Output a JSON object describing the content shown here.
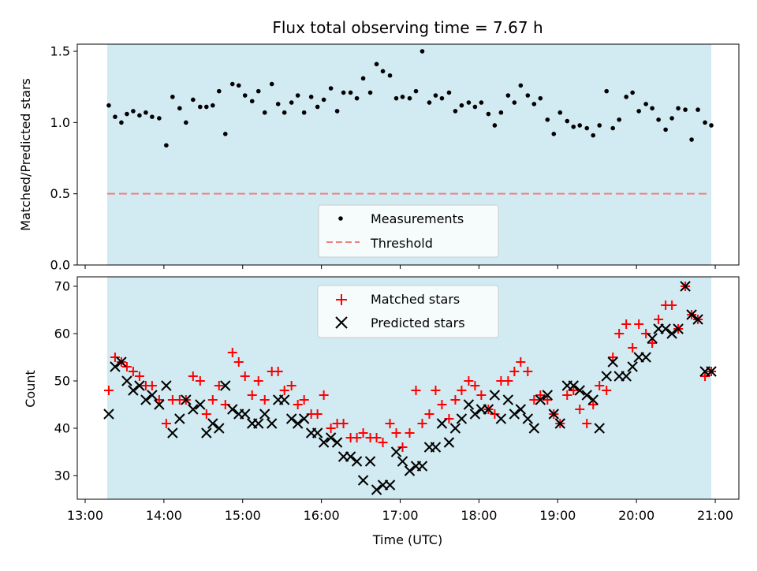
{
  "chart_data": [
    {
      "type": "scatter",
      "title": "Flux total observing time = 7.67 h",
      "xlabel": "",
      "ylabel": "Matched/Predicted stars",
      "xlim_hours": [
        12.9,
        21.3
      ],
      "ylim": [
        0.0,
        1.55
      ],
      "yticks": [
        0.0,
        0.5,
        1.0,
        1.5
      ],
      "ytick_labels": [
        "0.0",
        "0.5",
        "1.0",
        "1.5"
      ],
      "shaded_span_hours": [
        13.28,
        20.95
      ],
      "shade_color": "#add8e6",
      "threshold": {
        "name": "Threshold",
        "value": 0.5,
        "color": "#f08080",
        "x_hours": [
          13.28,
          20.9
        ]
      },
      "series": [
        {
          "name": "Measurements",
          "color": "#000000",
          "x_hours": [
            13.3,
            13.38,
            13.46,
            13.53,
            13.61,
            13.69,
            13.77,
            13.85,
            13.94,
            14.03,
            14.11,
            14.2,
            14.28,
            14.37,
            14.46,
            14.54,
            14.62,
            14.7,
            14.78,
            14.87,
            14.95,
            15.03,
            15.12,
            15.2,
            15.28,
            15.37,
            15.45,
            15.53,
            15.62,
            15.7,
            15.78,
            15.87,
            15.95,
            16.03,
            16.12,
            16.2,
            16.28,
            16.37,
            16.45,
            16.53,
            16.62,
            16.7,
            16.78,
            16.87,
            16.95,
            17.03,
            17.12,
            17.2,
            17.28,
            17.37,
            17.45,
            17.53,
            17.62,
            17.7,
            17.78,
            17.87,
            17.95,
            18.03,
            18.12,
            18.2,
            18.28,
            18.37,
            18.45,
            18.53,
            18.62,
            18.7,
            18.78,
            18.87,
            18.95,
            19.03,
            19.12,
            19.2,
            19.28,
            19.37,
            19.45,
            19.53,
            19.62,
            19.7,
            19.78,
            19.87,
            19.95,
            20.03,
            20.12,
            20.2,
            20.28,
            20.37,
            20.45,
            20.53,
            20.62,
            20.7,
            20.78,
            20.87,
            20.95
          ],
          "y": [
            1.12,
            1.04,
            1.0,
            1.06,
            1.08,
            1.05,
            1.07,
            1.04,
            1.03,
            0.84,
            1.18,
            1.1,
            1.0,
            1.16,
            1.11,
            1.11,
            1.12,
            1.22,
            0.92,
            1.27,
            1.26,
            1.19,
            1.15,
            1.22,
            1.07,
            1.27,
            1.13,
            1.07,
            1.14,
            1.19,
            1.07,
            1.18,
            1.11,
            1.16,
            1.24,
            1.08,
            1.21,
            1.21,
            1.17,
            1.31,
            1.21,
            1.41,
            1.36,
            1.33,
            1.17,
            1.18,
            1.17,
            1.22,
            1.5,
            1.14,
            1.19,
            1.17,
            1.21,
            1.08,
            1.12,
            1.14,
            1.11,
            1.14,
            1.06,
            0.98,
            1.07,
            1.19,
            1.14,
            1.26,
            1.19,
            1.13,
            1.17,
            1.02,
            0.92,
            1.07,
            1.01,
            0.97,
            0.98,
            0.96,
            0.91,
            0.98,
            1.22,
            0.96,
            1.02,
            1.18,
            1.21,
            1.08,
            1.13,
            1.1,
            1.02,
            0.95,
            1.03,
            1.1,
            1.09,
            0.88,
            1.09,
            1.0,
            0.98
          ]
        }
      ],
      "legend": {
        "location": "lower-center",
        "entries": [
          "Measurements",
          "Threshold"
        ]
      }
    },
    {
      "type": "scatter",
      "title": "",
      "xlabel": "Time (UTC)",
      "ylabel": "Count",
      "xlim_hours": [
        12.9,
        21.3
      ],
      "ylim": [
        25,
        72
      ],
      "yticks": [
        30,
        40,
        50,
        60,
        70
      ],
      "ytick_labels": [
        "30",
        "40",
        "50",
        "60",
        "70"
      ],
      "xticks_hours": [
        13,
        14,
        15,
        16,
        17,
        18,
        19,
        20,
        21
      ],
      "xtick_labels": [
        "13:00",
        "14:00",
        "15:00",
        "16:00",
        "17:00",
        "18:00",
        "19:00",
        "20:00",
        "21:00"
      ],
      "shaded_span_hours": [
        13.28,
        20.95
      ],
      "shade_color": "#add8e6",
      "series": [
        {
          "name": "Matched stars",
          "marker": "plus",
          "color": "#ff0000",
          "x_hours": [
            13.3,
            13.38,
            13.46,
            13.53,
            13.61,
            13.69,
            13.77,
            13.85,
            13.94,
            14.03,
            14.11,
            14.2,
            14.28,
            14.37,
            14.46,
            14.54,
            14.62,
            14.7,
            14.78,
            14.87,
            14.95,
            15.03,
            15.12,
            15.2,
            15.28,
            15.37,
            15.45,
            15.53,
            15.62,
            15.7,
            15.78,
            15.87,
            15.95,
            16.03,
            16.12,
            16.2,
            16.28,
            16.37,
            16.45,
            16.53,
            16.62,
            16.7,
            16.78,
            16.87,
            16.95,
            17.03,
            17.12,
            17.2,
            17.28,
            17.37,
            17.45,
            17.53,
            17.62,
            17.7,
            17.78,
            17.87,
            17.95,
            18.03,
            18.12,
            18.2,
            18.28,
            18.37,
            18.45,
            18.53,
            18.62,
            18.7,
            18.78,
            18.87,
            18.95,
            19.03,
            19.12,
            19.2,
            19.28,
            19.37,
            19.45,
            19.53,
            19.62,
            19.7,
            19.78,
            19.87,
            19.95,
            20.03,
            20.12,
            20.2,
            20.28,
            20.37,
            20.45,
            20.53,
            20.62,
            20.7,
            20.78,
            20.87,
            20.95
          ],
          "y": [
            48,
            55,
            54,
            53,
            52,
            51,
            49,
            49,
            46,
            41,
            46,
            46,
            46,
            51,
            50,
            43,
            46,
            49,
            45,
            56,
            54,
            51,
            47,
            50,
            46,
            52,
            52,
            48,
            49,
            45,
            46,
            43,
            43,
            47,
            40,
            41,
            41,
            38,
            38,
            39,
            38,
            38,
            37,
            41,
            39,
            36,
            39,
            48,
            41,
            43,
            48,
            45,
            42,
            46,
            48,
            50,
            49,
            47,
            44,
            43,
            50,
            50,
            52,
            54,
            52,
            46,
            47,
            46,
            43,
            41,
            47,
            48,
            44,
            41,
            45,
            49,
            48,
            55,
            60,
            62,
            57,
            62,
            60,
            58,
            63,
            66,
            66,
            61,
            70,
            64,
            63,
            51,
            52
          ]
        },
        {
          "name": "Predicted stars",
          "marker": "x",
          "color": "#000000",
          "x_hours": [
            13.3,
            13.38,
            13.46,
            13.53,
            13.61,
            13.69,
            13.77,
            13.85,
            13.94,
            14.03,
            14.11,
            14.2,
            14.28,
            14.37,
            14.46,
            14.54,
            14.62,
            14.7,
            14.78,
            14.87,
            14.95,
            15.03,
            15.12,
            15.2,
            15.28,
            15.37,
            15.45,
            15.53,
            15.62,
            15.7,
            15.78,
            15.87,
            15.95,
            16.03,
            16.12,
            16.2,
            16.28,
            16.37,
            16.45,
            16.53,
            16.62,
            16.7,
            16.78,
            16.87,
            16.95,
            17.03,
            17.12,
            17.2,
            17.28,
            17.37,
            17.45,
            17.53,
            17.62,
            17.7,
            17.78,
            17.87,
            17.95,
            18.03,
            18.12,
            18.2,
            18.28,
            18.37,
            18.45,
            18.53,
            18.62,
            18.7,
            18.78,
            18.87,
            18.95,
            19.03,
            19.12,
            19.2,
            19.28,
            19.37,
            19.45,
            19.53,
            19.62,
            19.7,
            19.78,
            19.87,
            19.95,
            20.03,
            20.12,
            20.2,
            20.28,
            20.37,
            20.45,
            20.53,
            20.62,
            20.7,
            20.78,
            20.87,
            20.95
          ],
          "y": [
            43,
            53,
            54,
            50,
            48,
            49,
            46,
            47,
            45,
            49,
            39,
            42,
            46,
            44,
            45,
            39,
            41,
            40,
            49,
            44,
            43,
            43,
            41,
            41,
            43,
            41,
            46,
            46,
            42,
            41,
            42,
            39,
            39,
            37,
            38,
            37,
            34,
            34,
            33,
            29,
            33,
            27,
            28,
            28,
            35,
            33,
            31,
            32,
            32,
            36,
            36,
            41,
            37,
            40,
            42,
            45,
            43,
            44,
            44,
            47,
            42,
            46,
            43,
            44,
            42,
            40,
            46,
            47,
            43,
            41,
            49,
            49,
            48,
            47,
            46,
            40,
            51,
            54,
            51,
            51,
            53,
            55,
            55,
            59,
            61,
            61,
            60,
            61,
            70,
            64,
            63,
            52,
            52
          ]
        }
      ],
      "legend": {
        "location": "upper-center",
        "entries": [
          "Matched stars",
          "Predicted stars"
        ]
      }
    }
  ]
}
